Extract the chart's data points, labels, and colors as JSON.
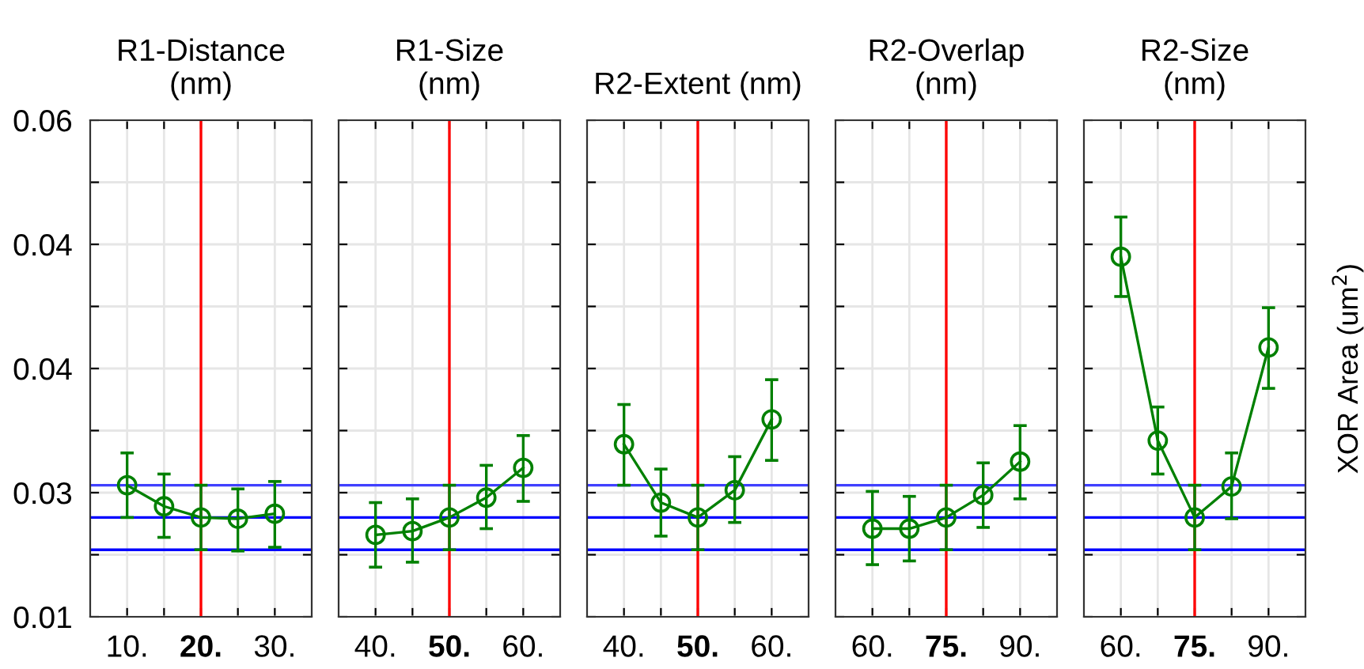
{
  "chart_data": [
    {
      "type": "line",
      "title": "R1-Distance\n(nm)",
      "x": [
        10,
        15,
        20,
        25,
        30
      ],
      "xlim": [
        5,
        35
      ],
      "xticks": [
        {
          "value": 10,
          "label": "10."
        },
        {
          "value": 15,
          "label": null
        },
        {
          "value": 20,
          "label": "20."
        },
        {
          "value": 25,
          "label": null
        },
        {
          "value": 30,
          "label": "30."
        }
      ],
      "ylim": [
        0.015,
        0.055
      ],
      "yticks": [
        {
          "value": 0.015,
          "label": "0.01"
        },
        {
          "value": 0.02,
          "label": null
        },
        {
          "value": 0.025,
          "label": "0.03"
        },
        {
          "value": 0.03,
          "label": null
        },
        {
          "value": 0.035,
          "label": "0.04"
        },
        {
          "value": 0.04,
          "label": null
        },
        {
          "value": 0.045,
          "label": "0.04"
        },
        {
          "value": 0.05,
          "label": null
        },
        {
          "value": 0.055,
          "label": "0.06"
        }
      ],
      "grid": true,
      "marker": "circle",
      "series": [
        {
          "color": "#008000",
          "values": [
            0.0256,
            0.0239,
            0.023,
            0.0229,
            0.0233
          ],
          "errors": [
            [
              0.023,
              0.0282
            ],
            [
              0.0214,
              0.0265
            ],
            [
              0.0204,
              0.0256
            ],
            [
              0.0203,
              0.0253
            ],
            [
              0.0206,
              0.0259
            ]
          ]
        }
      ],
      "ref_lines": [
        {
          "axis": "x",
          "value": 20,
          "color": "#ff0000"
        },
        {
          "axis": "y",
          "value": 0.0256,
          "color": "#4040ff"
        },
        {
          "axis": "y",
          "value": 0.023,
          "color": "#0000ff"
        },
        {
          "axis": "y",
          "value": 0.0204,
          "color": "#0000ff"
        }
      ]
    },
    {
      "type": "line",
      "title": "R1-Size\n(nm)",
      "x": [
        40,
        45,
        50,
        55,
        60
      ],
      "xlim": [
        35,
        65
      ],
      "xticks": [
        {
          "value": 40,
          "label": "40."
        },
        {
          "value": 45,
          "label": null
        },
        {
          "value": 50,
          "label": "50."
        },
        {
          "value": 55,
          "label": null
        },
        {
          "value": 60,
          "label": "60."
        }
      ],
      "ylim": [
        0.015,
        0.055
      ],
      "yticks": [
        0.015,
        0.02,
        0.025,
        0.03,
        0.035,
        0.04,
        0.045,
        0.05,
        0.055
      ],
      "tick_labels": "x",
      "grid": true,
      "marker": "circle",
      "series": [
        {
          "color": "#008000",
          "values": [
            0.0216,
            0.0219,
            0.023,
            0.0246,
            0.027
          ],
          "errors": [
            [
              0.019,
              0.0242
            ],
            [
              0.0194,
              0.0245
            ],
            [
              0.0204,
              0.0256
            ],
            [
              0.0221,
              0.0272
            ],
            [
              0.0243,
              0.0296
            ]
          ]
        }
      ],
      "ref_lines": [
        {
          "axis": "x",
          "value": 50,
          "color": "#ff0000"
        },
        {
          "axis": "y",
          "value": 0.0256,
          "color": "#4040ff"
        },
        {
          "axis": "y",
          "value": 0.023,
          "color": "#0000ff"
        },
        {
          "axis": "y",
          "value": 0.0204,
          "color": "#0000ff"
        }
      ]
    },
    {
      "type": "line",
      "title": "R2-Extent (nm)",
      "x": [
        40,
        45,
        50,
        55,
        60
      ],
      "xlim": [
        35,
        65
      ],
      "xticks": [
        {
          "value": 40,
          "label": "40."
        },
        {
          "value": 45,
          "label": null
        },
        {
          "value": 50,
          "label": "50."
        },
        {
          "value": 55,
          "label": null
        },
        {
          "value": 60,
          "label": "60."
        }
      ],
      "ylim": [
        0.015,
        0.055
      ],
      "yticks": [
        0.015,
        0.02,
        0.025,
        0.03,
        0.035,
        0.04,
        0.045,
        0.05,
        0.055
      ],
      "tick_labels": "x",
      "grid": true,
      "marker": "circle",
      "series": [
        {
          "color": "#008000",
          "values": [
            0.0289,
            0.0242,
            0.023,
            0.0252,
            0.0309
          ],
          "errors": [
            [
              0.0256,
              0.0321
            ],
            [
              0.0215,
              0.0269
            ],
            [
              0.0204,
              0.0256
            ],
            [
              0.0226,
              0.0279
            ],
            [
              0.0276,
              0.0341
            ]
          ]
        }
      ],
      "ref_lines": [
        {
          "axis": "x",
          "value": 50,
          "color": "#ff0000"
        },
        {
          "axis": "y",
          "value": 0.0256,
          "color": "#4040ff"
        },
        {
          "axis": "y",
          "value": 0.023,
          "color": "#0000ff"
        },
        {
          "axis": "y",
          "value": 0.0204,
          "color": "#0000ff"
        }
      ]
    },
    {
      "type": "line",
      "title": "R2-Overlap\n(nm)",
      "x": [
        60,
        67.5,
        75,
        82.5,
        90
      ],
      "xlim": [
        52.5,
        97.5
      ],
      "xticks": [
        {
          "value": 60,
          "label": "60."
        },
        {
          "value": 67.5,
          "label": null
        },
        {
          "value": 75,
          "label": "75."
        },
        {
          "value": 82.5,
          "label": null
        },
        {
          "value": 90,
          "label": "90."
        }
      ],
      "ylim": [
        0.015,
        0.055
      ],
      "yticks": [
        0.015,
        0.02,
        0.025,
        0.03,
        0.035,
        0.04,
        0.045,
        0.05,
        0.055
      ],
      "tick_labels": "x",
      "grid": true,
      "marker": "circle",
      "series": [
        {
          "color": "#008000",
          "values": [
            0.0221,
            0.0221,
            0.023,
            0.0248,
            0.0275
          ],
          "errors": [
            [
              0.0192,
              0.0251
            ],
            [
              0.0195,
              0.0247
            ],
            [
              0.0204,
              0.0256
            ],
            [
              0.0222,
              0.0274
            ],
            [
              0.0245,
              0.0304
            ]
          ]
        }
      ],
      "ref_lines": [
        {
          "axis": "x",
          "value": 75,
          "color": "#ff0000"
        },
        {
          "axis": "y",
          "value": 0.0256,
          "color": "#4040ff"
        },
        {
          "axis": "y",
          "value": 0.023,
          "color": "#0000ff"
        },
        {
          "axis": "y",
          "value": 0.0204,
          "color": "#0000ff"
        }
      ]
    },
    {
      "type": "line",
      "title": "R2-Size\n(nm)",
      "ylabel": "XOR Area (um$^{2}$)",
      "x": [
        60,
        67.5,
        75,
        82.5,
        90
      ],
      "xlim": [
        52.5,
        97.5
      ],
      "xticks": [
        {
          "value": 60,
          "label": "60."
        },
        {
          "value": 67.5,
          "label": null
        },
        {
          "value": 75,
          "label": "75."
        },
        {
          "value": 82.5,
          "label": null
        },
        {
          "value": 90,
          "label": "90."
        }
      ],
      "ylim": [
        0.015,
        0.055
      ],
      "yticks": [
        0.015,
        0.02,
        0.025,
        0.03,
        0.035,
        0.04,
        0.045,
        0.05,
        0.055
      ],
      "tick_labels": "x",
      "grid": true,
      "marker": "circle",
      "series": [
        {
          "color": "#008000",
          "values": [
            0.044,
            0.0292,
            0.023,
            0.0255,
            0.0367
          ],
          "errors": [
            [
              0.0408,
              0.0472
            ],
            [
              0.0265,
              0.0319
            ],
            [
              0.0204,
              0.0256
            ],
            [
              0.0229,
              0.0282
            ],
            [
              0.0334,
              0.0399
            ]
          ]
        }
      ],
      "ref_lines": [
        {
          "axis": "x",
          "value": 75,
          "color": "#ff0000"
        },
        {
          "axis": "y",
          "value": 0.0256,
          "color": "#4040ff"
        },
        {
          "axis": "y",
          "value": 0.023,
          "color": "#0000ff"
        },
        {
          "axis": "y",
          "value": 0.0204,
          "color": "#0000ff"
        }
      ]
    }
  ]
}
